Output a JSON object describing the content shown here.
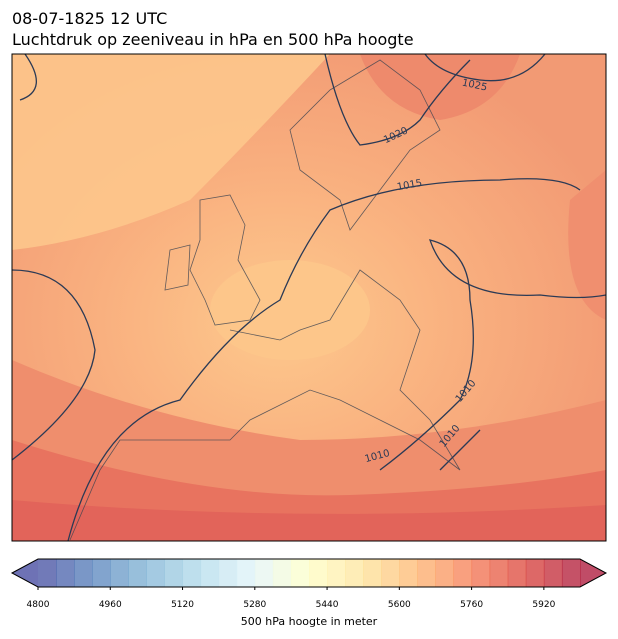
{
  "header": {
    "title": "08-07-1825 12 UTC",
    "subtitle": "Luchtdruk op zeeniveau in hPa en 500 hPa hoogte"
  },
  "map": {
    "isobar_labels": [
      "1025",
      "1020",
      "1015",
      "1010",
      "1010",
      "1010"
    ]
  },
  "colorbar": {
    "label": "500 hPa hoogte in meter",
    "range": [
      4800,
      6000
    ],
    "step": 40,
    "ticks": [
      4800,
      4960,
      5120,
      5280,
      5440,
      5600,
      5760,
      5920
    ]
  }
}
